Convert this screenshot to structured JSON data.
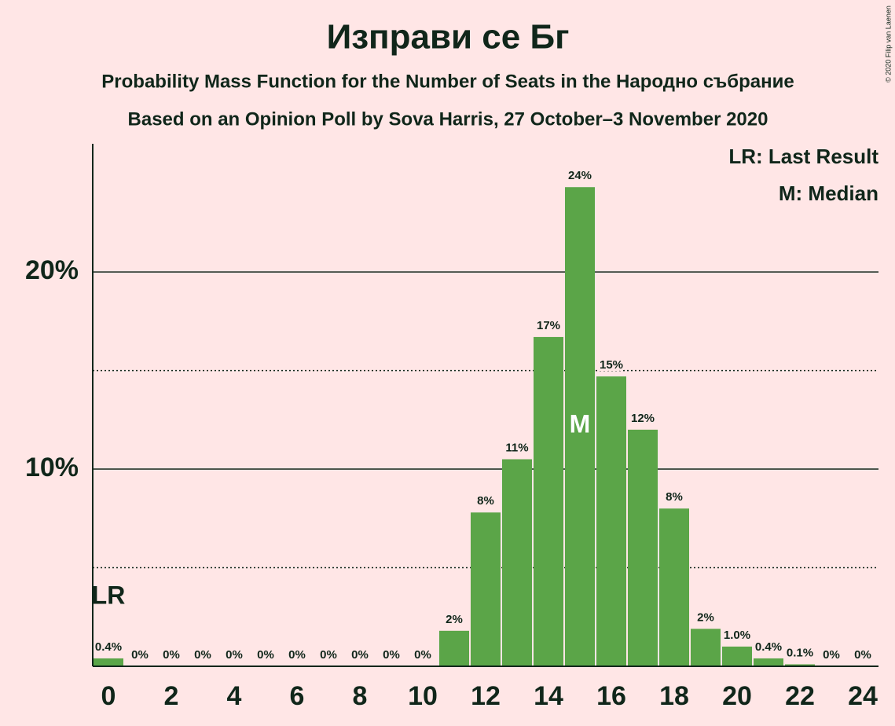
{
  "chart_data": {
    "type": "bar",
    "title": "Изправи се Бг",
    "subtitle": "Probability Mass Function for the Number of Seats in the Народно събрание",
    "subtitle2": "Based on an Opinion Poll by Sova Harris, 27 October–3 November 2020",
    "copyright": "© 2020 Filip van Laenen",
    "x": [
      0,
      1,
      2,
      3,
      4,
      5,
      6,
      7,
      8,
      9,
      10,
      11,
      12,
      13,
      14,
      15,
      16,
      17,
      18,
      19,
      20,
      21,
      22,
      23,
      24
    ],
    "values": [
      0.4,
      0,
      0,
      0,
      0,
      0,
      0,
      0,
      0,
      0,
      0,
      1.8,
      7.8,
      10.5,
      16.7,
      24.3,
      14.7,
      12.0,
      8.0,
      1.9,
      1.0,
      0.4,
      0.1,
      0,
      0
    ],
    "value_labels": [
      "0.4%",
      "0%",
      "0%",
      "0%",
      "0%",
      "0%",
      "0%",
      "0%",
      "0%",
      "0%",
      "0%",
      "2%",
      "8%",
      "11%",
      "17%",
      "24%",
      "15%",
      "12%",
      "8%",
      "2%",
      "1.0%",
      "0.4%",
      "0.1%",
      "0%",
      "0%"
    ],
    "color": "#5ba548",
    "xlim": [
      -0.5,
      24.5
    ],
    "xticks": [
      0,
      2,
      4,
      6,
      8,
      10,
      12,
      14,
      16,
      18,
      20,
      22,
      24
    ],
    "ylim": [
      0,
      26.5
    ],
    "yticks": [
      {
        "value": 10,
        "label": "10%"
      },
      {
        "value": 20,
        "label": "20%"
      }
    ],
    "minor_yticks": [
      5,
      15
    ],
    "grid": true,
    "annotations": [
      {
        "label": "LR",
        "x": 0
      },
      {
        "label": "M",
        "x": 15
      }
    ],
    "legend": [
      "LR: Last Result",
      "M: Median"
    ],
    "legend_position": "upper right"
  }
}
